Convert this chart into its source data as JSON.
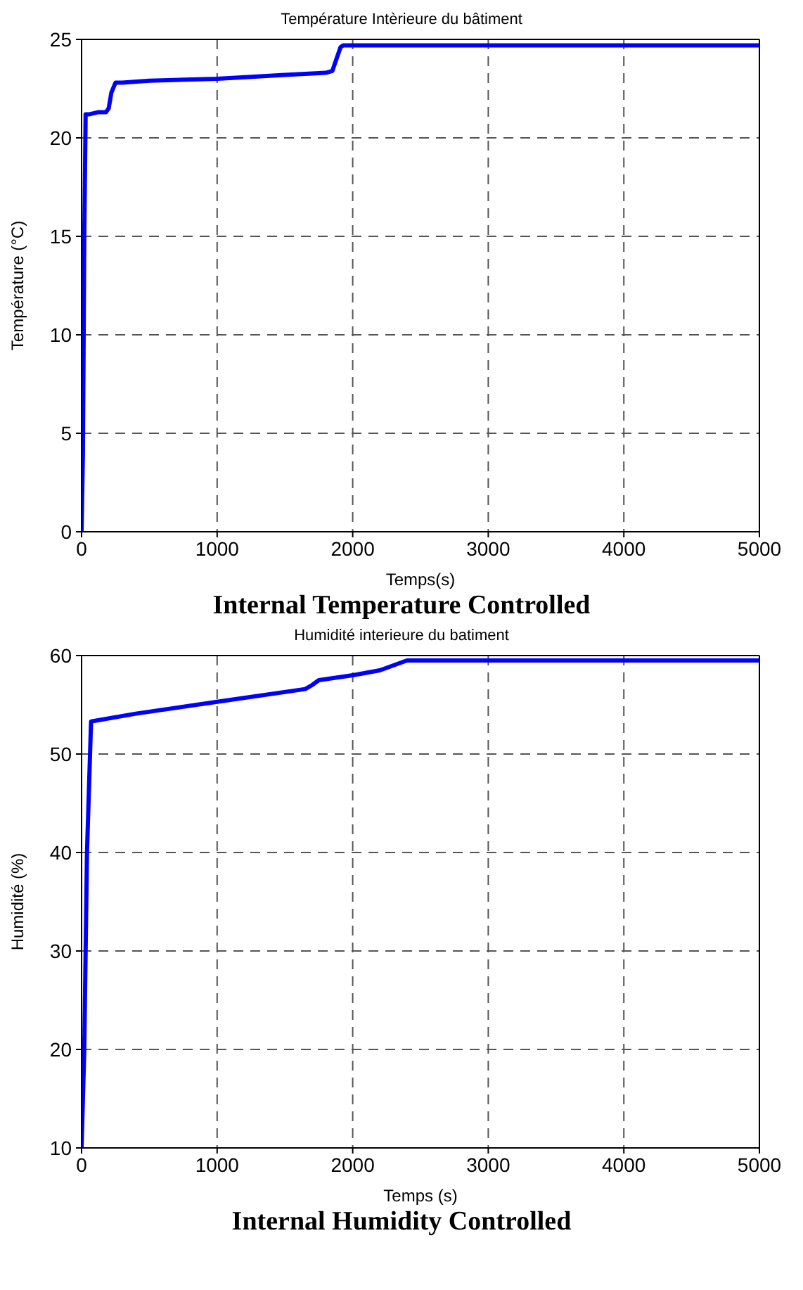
{
  "chart_data": [
    {
      "type": "line",
      "title": "Température Intèrieure du bâtiment",
      "xlabel": "Temps(s)",
      "ylabel": "Température (°C)",
      "annotations": [
        "Internal Temperature Controlled"
      ],
      "x": [
        0,
        10,
        20,
        30,
        60,
        120,
        180,
        200,
        220,
        250,
        300,
        500,
        1000,
        1500,
        1800,
        1850,
        1880,
        1910,
        1930,
        2000,
        3000,
        4000,
        5000
      ],
      "series": [
        {
          "color": "#0000ff",
          "values": [
            0,
            4,
            15,
            21.2,
            21.2,
            21.3,
            21.3,
            21.5,
            22.3,
            22.8,
            22.8,
            22.9,
            23.0,
            23.2,
            23.3,
            23.4,
            24.0,
            24.6,
            24.7,
            24.7,
            24.7,
            24.7,
            24.7
          ]
        }
      ],
      "xlim": [
        0,
        5000
      ],
      "ylim": [
        0,
        25
      ],
      "xticks": [
        0,
        1000,
        2000,
        3000,
        4000,
        5000
      ],
      "yticks": [
        0,
        5,
        10,
        15,
        20,
        25
      ],
      "grid": true
    },
    {
      "type": "line",
      "title": "Humidité interieure du batiment",
      "xlabel": "Temps (s)",
      "ylabel": "Humidité (%)",
      "annotations": [
        "Internal Humidity Controlled"
      ],
      "x": [
        0,
        20,
        40,
        70,
        400,
        1000,
        1650,
        1700,
        1750,
        2000,
        2200,
        2300,
        2400,
        3000,
        4000,
        5000
      ],
      "series": [
        {
          "color": "#0000ff",
          "values": [
            10,
            20,
            40,
            53.3,
            54.1,
            55.3,
            56.6,
            57.0,
            57.5,
            58.0,
            58.5,
            59.0,
            59.5,
            59.5,
            59.5,
            59.5
          ]
        }
      ],
      "xlim": [
        0,
        5000
      ],
      "ylim": [
        10,
        60
      ],
      "xticks": [
        0,
        1000,
        2000,
        3000,
        4000,
        5000
      ],
      "yticks": [
        10,
        20,
        30,
        40,
        50,
        60
      ],
      "grid": true
    }
  ]
}
